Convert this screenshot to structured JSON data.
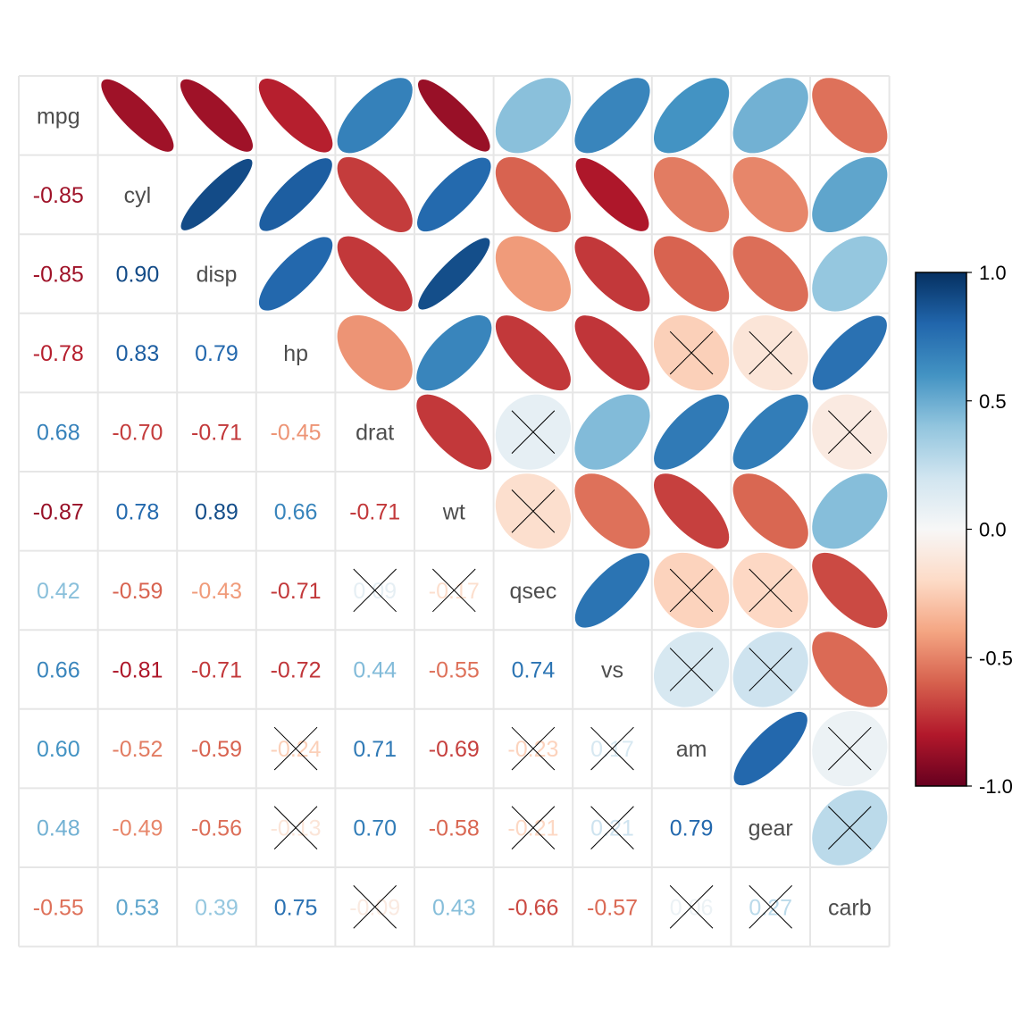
{
  "chart_data": {
    "type": "heatmap",
    "title": "",
    "variables": [
      "mpg",
      "cyl",
      "disp",
      "hp",
      "drat",
      "wt",
      "qsec",
      "vs",
      "am",
      "gear",
      "carb"
    ],
    "matrix": [
      [
        1.0,
        -0.85,
        -0.85,
        -0.78,
        0.68,
        -0.87,
        0.42,
        0.66,
        0.6,
        0.48,
        -0.55
      ],
      [
        -0.85,
        1.0,
        0.9,
        0.83,
        -0.7,
        0.78,
        -0.59,
        -0.81,
        -0.52,
        -0.49,
        0.53
      ],
      [
        -0.85,
        0.9,
        1.0,
        0.79,
        -0.71,
        0.89,
        -0.43,
        -0.71,
        -0.59,
        -0.56,
        0.39
      ],
      [
        -0.78,
        0.83,
        0.79,
        1.0,
        -0.45,
        0.66,
        -0.71,
        -0.72,
        -0.24,
        -0.13,
        0.75
      ],
      [
        0.68,
        -0.7,
        -0.71,
        -0.45,
        1.0,
        -0.71,
        0.09,
        0.44,
        0.71,
        0.7,
        -0.09
      ],
      [
        -0.87,
        0.78,
        0.89,
        0.66,
        -0.71,
        1.0,
        -0.17,
        -0.55,
        -0.69,
        -0.58,
        0.43
      ],
      [
        0.42,
        -0.59,
        -0.43,
        -0.71,
        0.09,
        -0.17,
        1.0,
        0.74,
        -0.23,
        -0.21,
        -0.66
      ],
      [
        0.66,
        -0.81,
        -0.71,
        -0.72,
        0.44,
        -0.55,
        0.74,
        1.0,
        0.17,
        0.21,
        -0.57
      ],
      [
        0.6,
        -0.52,
        -0.59,
        -0.24,
        0.71,
        -0.69,
        -0.23,
        0.17,
        1.0,
        0.79,
        0.06
      ],
      [
        0.48,
        -0.49,
        -0.56,
        -0.13,
        0.7,
        -0.58,
        -0.21,
        0.21,
        0.79,
        1.0,
        0.27
      ],
      [
        -0.55,
        0.53,
        0.39,
        0.75,
        -0.09,
        0.43,
        -0.66,
        -0.57,
        0.06,
        0.27,
        1.0
      ]
    ],
    "lower_labels": [
      [
        "-0.85"
      ],
      [
        "-0.85",
        "0.90"
      ],
      [
        "-0.78",
        "0.83",
        "0.79"
      ],
      [
        "0.68",
        "-0.70",
        "-0.71",
        "-0.45"
      ],
      [
        "-0.87",
        "0.78",
        "0.89",
        "0.66",
        "-0.71"
      ],
      [
        "0.42",
        "-0.59",
        "-0.43",
        "-0.71",
        "0.09",
        "-0.17"
      ],
      [
        "0.66",
        "-0.81",
        "-0.71",
        "-0.72",
        "0.44",
        "-0.55",
        "0.74"
      ],
      [
        "0.60",
        "-0.52",
        "-0.59",
        "-0.24",
        "0.71",
        "-0.69",
        "-0.23",
        "0.17"
      ],
      [
        "0.48",
        "-0.49",
        "-0.56",
        "-0.13",
        "0.70",
        "-0.58",
        "-0.21",
        "0.21",
        "0.79"
      ],
      [
        "-0.55",
        "0.53",
        "0.39",
        "0.75",
        "-0.09",
        "0.43",
        "-0.66",
        "-0.57",
        "0.06",
        "0.27"
      ]
    ],
    "insignificant": [
      [
        "hp",
        "am"
      ],
      [
        "hp",
        "gear"
      ],
      [
        "drat",
        "qsec"
      ],
      [
        "drat",
        "carb"
      ],
      [
        "wt",
        "qsec"
      ],
      [
        "qsec",
        "am"
      ],
      [
        "qsec",
        "gear"
      ],
      [
        "vs",
        "am"
      ],
      [
        "vs",
        "gear"
      ],
      [
        "am",
        "carb"
      ],
      [
        "gear",
        "carb"
      ]
    ],
    "upper_method": "ellipse",
    "lower_method": "number",
    "insignificant_marker": "cross",
    "colorbar": {
      "range": [
        -1.0,
        1.0
      ],
      "tick_labels": [
        "1.0",
        "0.5",
        "0.0",
        "-0.5",
        "-1.0"
      ],
      "position": "right"
    },
    "palette": [
      "#67001F",
      "#B2182B",
      "#D6604D",
      "#F4A582",
      "#FDDBC7",
      "#F7F7F7",
      "#D1E5F0",
      "#92C5DE",
      "#4393C3",
      "#2166AC",
      "#053061"
    ],
    "colors": {
      "grid": "#e6e6e6",
      "diag_text": "#4d4d4d",
      "cross": "#000000",
      "frame": "#000000"
    },
    "grid": true
  }
}
